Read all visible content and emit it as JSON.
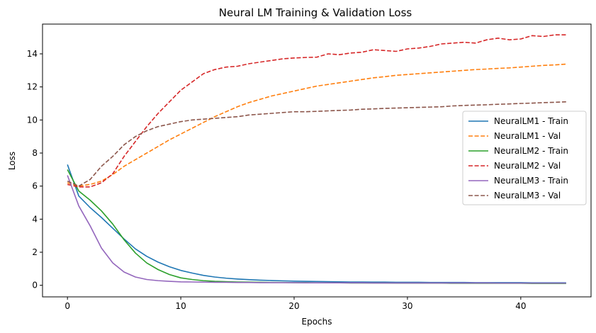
{
  "chart_data": {
    "type": "line",
    "title": "Neural LM Training & Validation Loss",
    "xlabel": "Epochs",
    "ylabel": "Loss",
    "xlim": [
      -2.2,
      46.2
    ],
    "ylim": [
      -0.7,
      15.8
    ],
    "xticks": [
      0,
      10,
      20,
      30,
      40
    ],
    "yticks": [
      0,
      2,
      4,
      6,
      8,
      10,
      12,
      14
    ],
    "grid": false,
    "legend_position": "center-right",
    "x": [
      0,
      1,
      2,
      3,
      4,
      5,
      6,
      7,
      8,
      9,
      10,
      11,
      12,
      13,
      14,
      15,
      16,
      17,
      18,
      19,
      20,
      21,
      22,
      23,
      24,
      25,
      26,
      27,
      28,
      29,
      30,
      31,
      32,
      33,
      34,
      35,
      36,
      37,
      38,
      39,
      40,
      41,
      42,
      43,
      44
    ],
    "series": [
      {
        "name": "NeuralLM1 - Train",
        "color": "#1f77b4",
        "style": "solid",
        "values": [
          7.3,
          5.4,
          4.7,
          4.1,
          3.45,
          2.8,
          2.2,
          1.75,
          1.4,
          1.12,
          0.9,
          0.74,
          0.6,
          0.5,
          0.43,
          0.38,
          0.34,
          0.31,
          0.29,
          0.27,
          0.25,
          0.24,
          0.23,
          0.22,
          0.21,
          0.2,
          0.2,
          0.19,
          0.19,
          0.18,
          0.18,
          0.18,
          0.17,
          0.17,
          0.17,
          0.17,
          0.16,
          0.16,
          0.16,
          0.16,
          0.16,
          0.15,
          0.15,
          0.15,
          0.15
        ]
      },
      {
        "name": "NeuralLM1 - Val",
        "color": "#ff7f0e",
        "style": "dashed",
        "values": [
          6.2,
          6.0,
          6.1,
          6.3,
          6.7,
          7.2,
          7.6,
          8.0,
          8.4,
          8.8,
          9.15,
          9.5,
          9.85,
          10.2,
          10.5,
          10.8,
          11.05,
          11.25,
          11.45,
          11.6,
          11.75,
          11.9,
          12.05,
          12.15,
          12.25,
          12.35,
          12.45,
          12.55,
          12.62,
          12.7,
          12.75,
          12.8,
          12.85,
          12.9,
          12.95,
          13.0,
          13.05,
          13.08,
          13.12,
          13.15,
          13.2,
          13.25,
          13.3,
          13.33,
          13.38
        ]
      },
      {
        "name": "NeuralLM2 - Train",
        "color": "#2ca02c",
        "style": "solid",
        "values": [
          7.0,
          5.7,
          5.15,
          4.5,
          3.7,
          2.75,
          1.95,
          1.35,
          0.95,
          0.65,
          0.45,
          0.35,
          0.28,
          0.24,
          0.22,
          0.2,
          0.19,
          0.18,
          0.17,
          0.17,
          0.16,
          0.16,
          0.15,
          0.15,
          0.15,
          0.14,
          0.14,
          0.14,
          0.14,
          0.13,
          0.13,
          0.13,
          0.13,
          0.13,
          0.12,
          0.12,
          0.12,
          0.12,
          0.12,
          0.12,
          0.12,
          0.11,
          0.11,
          0.11,
          0.11
        ]
      },
      {
        "name": "NeuralLM2 - Val",
        "color": "#d62728",
        "style": "dashed",
        "values": [
          6.1,
          5.95,
          5.95,
          6.2,
          6.75,
          7.8,
          8.7,
          9.6,
          10.4,
          11.1,
          11.8,
          12.3,
          12.8,
          13.05,
          13.2,
          13.25,
          13.4,
          13.5,
          13.6,
          13.7,
          13.75,
          13.78,
          13.8,
          14.0,
          13.95,
          14.05,
          14.1,
          14.25,
          14.2,
          14.15,
          14.3,
          14.35,
          14.45,
          14.6,
          14.65,
          14.7,
          14.65,
          14.85,
          14.95,
          14.85,
          14.9,
          15.1,
          15.05,
          15.15,
          15.15
        ]
      },
      {
        "name": "NeuralLM3 - Train",
        "color": "#9467bd",
        "style": "solid",
        "values": [
          6.65,
          4.8,
          3.6,
          2.25,
          1.35,
          0.8,
          0.5,
          0.35,
          0.28,
          0.24,
          0.21,
          0.2,
          0.19,
          0.18,
          0.18,
          0.17,
          0.17,
          0.16,
          0.16,
          0.16,
          0.16,
          0.15,
          0.15,
          0.15,
          0.15,
          0.15,
          0.15,
          0.14,
          0.14,
          0.14,
          0.14,
          0.14,
          0.14,
          0.14,
          0.14,
          0.14,
          0.14,
          0.14,
          0.13,
          0.13,
          0.13,
          0.13,
          0.13,
          0.13,
          0.13
        ]
      },
      {
        "name": "NeuralLM3 - Val",
        "color": "#8c564b",
        "style": "dashed",
        "values": [
          6.3,
          6.0,
          6.4,
          7.2,
          7.8,
          8.5,
          9.0,
          9.35,
          9.6,
          9.75,
          9.9,
          10.0,
          10.05,
          10.1,
          10.15,
          10.2,
          10.3,
          10.35,
          10.4,
          10.45,
          10.5,
          10.5,
          10.52,
          10.55,
          10.58,
          10.6,
          10.65,
          10.67,
          10.7,
          10.72,
          10.74,
          10.76,
          10.78,
          10.8,
          10.85,
          10.88,
          10.9,
          10.92,
          10.95,
          10.97,
          11.0,
          11.02,
          11.05,
          11.07,
          11.1
        ]
      }
    ]
  }
}
